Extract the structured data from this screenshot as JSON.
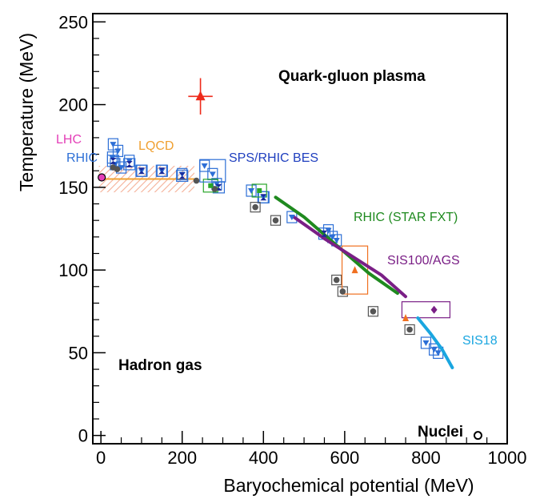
{
  "chart_data": {
    "type": "scatter",
    "xlabel": "Baryochemical potential (MeV)",
    "ylabel": "Temperature (MeV)",
    "xlim": [
      -20,
      1000
    ],
    "ylim": [
      -5,
      255
    ],
    "x_ticks": [
      "0",
      "200",
      "400",
      "600",
      "800",
      "1000"
    ],
    "y_ticks": [
      "0",
      "50",
      "100",
      "150",
      "200",
      "250"
    ],
    "grid": false,
    "region_labels": {
      "qgp": "Quark-gluon plasma",
      "hadron": "Hadron gas",
      "nuclei": "Nuclei"
    },
    "annotations": {
      "lhc": "LHC",
      "rhic": "RHIC",
      "lqcd": "LQCD",
      "sps": "SPS/RHIC BES",
      "star_fxt": "RHIC (STAR FXT)",
      "sis100": "SIS100/AGS",
      "sis18": "SIS18"
    },
    "colors": {
      "lhc": "#e43fb8",
      "rhic": "#2d6fd6",
      "lqcd": "#f0a030",
      "sps": "#1f3fbf",
      "star_fxt": "#1f8a1f",
      "sis100": "#7a1f86",
      "sis18": "#1aa6e0",
      "red": "#ee2a1a",
      "grey": "#555555",
      "orange": "#f07020",
      "navy": "#1a2a9a"
    },
    "series": [
      {
        "name": "LQCD",
        "type": "band",
        "x": [
          -5,
          230
        ],
        "center": 155,
        "half_width": 8
      },
      {
        "name": "LHC",
        "type": "point",
        "points": [
          [
            2,
            156
          ]
        ]
      },
      {
        "name": "STAR FXT",
        "type": "curve",
        "points": [
          [
            430,
            144
          ],
          [
            500,
            132
          ],
          [
            580,
            115
          ],
          [
            660,
            98
          ],
          [
            730,
            86
          ]
        ]
      },
      {
        "name": "SIS100/AGS",
        "type": "curve",
        "points": [
          [
            475,
            132
          ],
          [
            550,
            119
          ],
          [
            620,
            108
          ],
          [
            690,
            97
          ],
          [
            750,
            84
          ]
        ]
      },
      {
        "name": "SIS18",
        "type": "curve",
        "points": [
          [
            780,
            71
          ],
          [
            810,
            62
          ],
          [
            840,
            52
          ],
          [
            865,
            41
          ]
        ]
      },
      {
        "name": "red triangle",
        "type": "point",
        "points": [
          [
            245,
            205
          ]
        ],
        "x_err": 30,
        "y_err": 11
      },
      {
        "name": "blue down-triangles",
        "type": "point",
        "points": [
          [
            30,
            176
          ],
          [
            42,
            172
          ],
          [
            28,
            168
          ],
          [
            35,
            164
          ],
          [
            50,
            162
          ],
          [
            70,
            166
          ],
          [
            100,
            160
          ],
          [
            150,
            160
          ],
          [
            200,
            158
          ],
          [
            255,
            163
          ],
          [
            275,
            158
          ],
          [
            285,
            152
          ],
          [
            370,
            148
          ],
          [
            400,
            144
          ],
          [
            470,
            132
          ],
          [
            560,
            124
          ],
          [
            570,
            120
          ],
          [
            580,
            118
          ],
          [
            800,
            56
          ],
          [
            820,
            52
          ],
          [
            830,
            50
          ]
        ]
      },
      {
        "name": "navy squares",
        "type": "point",
        "points": [
          [
            30,
            166
          ],
          [
            70,
            164
          ],
          [
            100,
            160
          ],
          [
            150,
            160
          ],
          [
            200,
            157
          ],
          [
            290,
            150
          ],
          [
            400,
            144
          ],
          [
            550,
            122
          ]
        ]
      },
      {
        "name": "grey circles",
        "type": "point",
        "points": [
          [
            30,
            162
          ],
          [
            40,
            161
          ],
          [
            235,
            154
          ],
          [
            280,
            149
          ],
          [
            380,
            138
          ],
          [
            430,
            130
          ],
          [
            580,
            94
          ],
          [
            595,
            87
          ],
          [
            670,
            75
          ],
          [
            760,
            64
          ]
        ]
      },
      {
        "name": "green squares",
        "type": "point",
        "points": [
          [
            270,
            151
          ],
          [
            390,
            148
          ]
        ]
      },
      {
        "name": "orange triangles",
        "type": "point",
        "points": [
          [
            625,
            100
          ],
          [
            750,
            71
          ]
        ]
      },
      {
        "name": "purple diamond",
        "type": "point",
        "points": [
          [
            820,
            76
          ]
        ]
      },
      {
        "name": "Nuclei",
        "type": "point",
        "points": [
          [
            928,
            0
          ]
        ]
      }
    ]
  }
}
